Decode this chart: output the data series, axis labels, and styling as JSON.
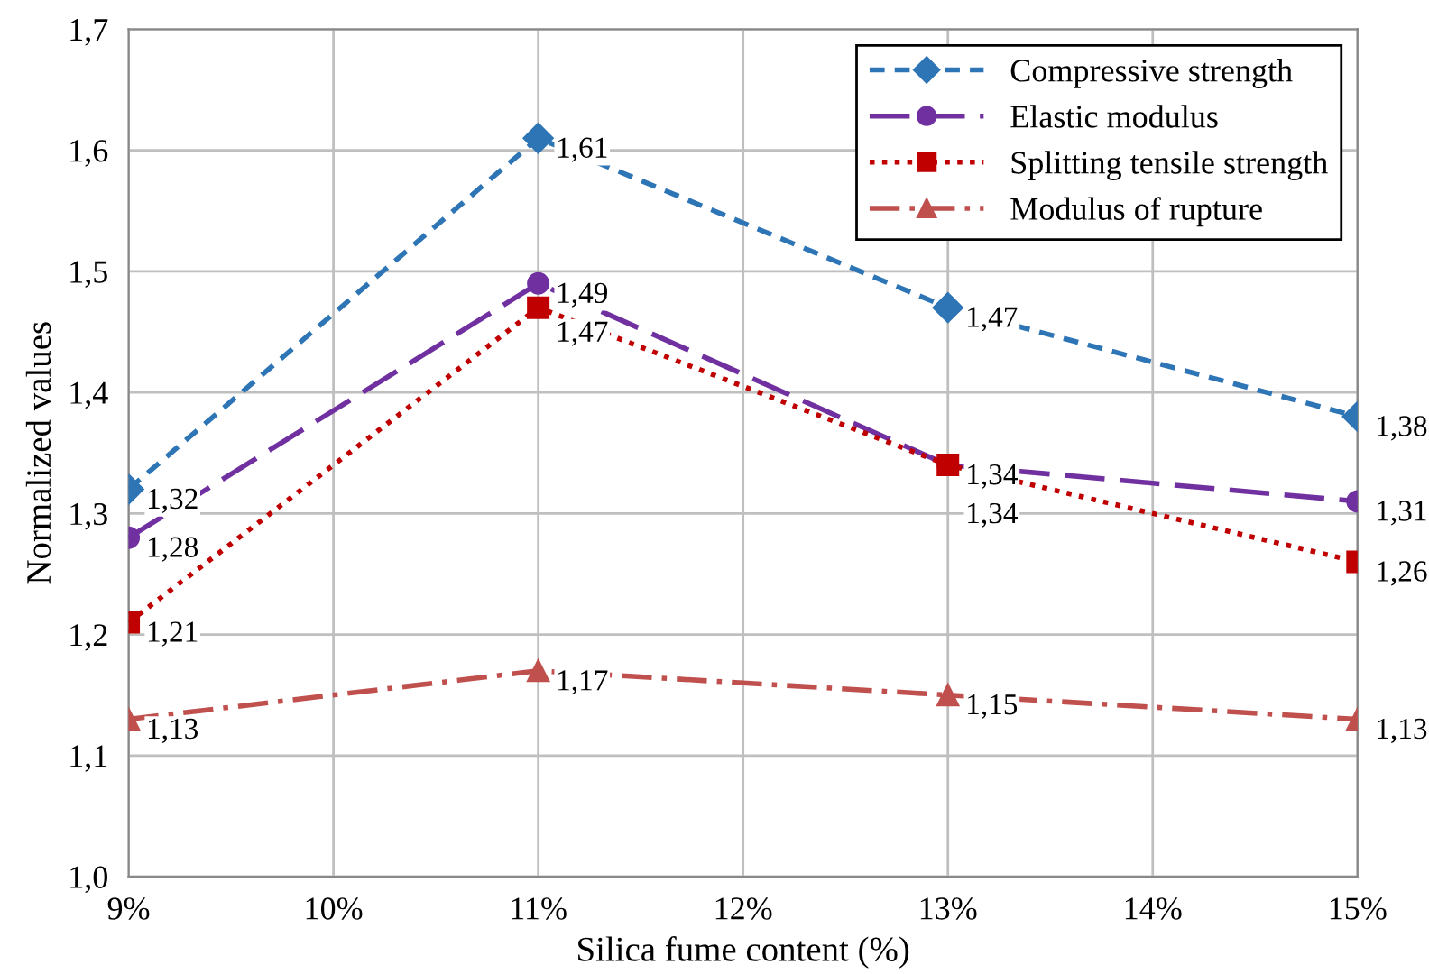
{
  "chart_data": {
    "type": "line",
    "xlabel": "Silica fume content (%)",
    "ylabel": "Normalized values",
    "x": [
      9,
      11,
      13,
      15
    ],
    "series": [
      {
        "name": "Compressive strength",
        "color": "#2e75b6",
        "values": [
          1.32,
          1.61,
          1.47,
          1.38
        ],
        "value_labels": [
          "1,32",
          "1,61",
          "1,47",
          "1,38"
        ],
        "marker": "diamond",
        "line_style": "dashed"
      },
      {
        "name": "Elastic modulus",
        "color": "#7030a0",
        "values": [
          1.28,
          1.49,
          1.34,
          1.31
        ],
        "value_labels": [
          "1,28",
          "1,49",
          "1,34",
          "1,31"
        ],
        "marker": "circle",
        "line_style": "longdash"
      },
      {
        "name": "Splitting tensile strength",
        "color": "#c00000",
        "values": [
          1.21,
          1.47,
          1.34,
          1.26
        ],
        "value_labels": [
          "1,21",
          "1,47",
          "1,34",
          "1,26"
        ],
        "marker": "square",
        "line_style": "dotted"
      },
      {
        "name": "Modulus of rupture",
        "color": "#c0504d",
        "values": [
          1.13,
          1.17,
          1.15,
          1.13
        ],
        "value_labels": [
          "1,13",
          "1,17",
          "1,15",
          "1,13"
        ],
        "marker": "triangle",
        "line_style": "dashdot"
      }
    ],
    "xlim": [
      9,
      15
    ],
    "xticks": [
      {
        "value": 9,
        "label": "9%"
      },
      {
        "value": 10,
        "label": "10%"
      },
      {
        "value": 11,
        "label": "11%"
      },
      {
        "value": 12,
        "label": "12%"
      },
      {
        "value": 13,
        "label": "13%"
      },
      {
        "value": 14,
        "label": "14%"
      },
      {
        "value": 15,
        "label": "15%"
      }
    ],
    "ylim": [
      1.0,
      1.7
    ],
    "yticks": [
      {
        "value": 1.0,
        "label": "1,0"
      },
      {
        "value": 1.1,
        "label": "1,1"
      },
      {
        "value": 1.2,
        "label": "1,2"
      },
      {
        "value": 1.3,
        "label": "1,3"
      },
      {
        "value": 1.4,
        "label": "1,4"
      },
      {
        "value": 1.5,
        "label": "1,5"
      },
      {
        "value": 1.6,
        "label": "1,6"
      },
      {
        "value": 1.7,
        "label": "1,7"
      }
    ],
    "grid": true,
    "legend": "top right"
  }
}
